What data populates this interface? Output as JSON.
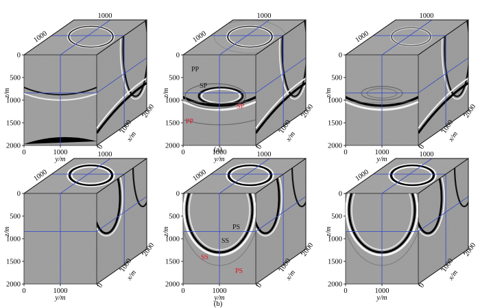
{
  "colors": {
    "background": "#ffffff",
    "slice_gray": "#9c9c9c",
    "crosshair": "#3b4fc4",
    "annotation_black": "#111111",
    "annotation_red": "#e0141e"
  },
  "axis_text": {
    "z_label": "z/m",
    "y_label": "y/m",
    "x_label": "x/m",
    "z_ticks": [
      "0",
      "500",
      "1000",
      "1500",
      "2000"
    ],
    "y_ticks": [
      "0",
      "1000"
    ],
    "x_ticks": [
      "0",
      "1000",
      "2000"
    ],
    "top_tick": "1000",
    "left_top_tick": "1000"
  },
  "captions": {
    "row_a": "(a)",
    "row_b": "(b)"
  },
  "annotations": {
    "a2": [
      {
        "text": "PP",
        "color": "black"
      },
      {
        "text": "SP",
        "color": "black"
      },
      {
        "text": "SP",
        "color": "red"
      },
      {
        "text": "PP",
        "color": "red"
      }
    ],
    "b2": [
      {
        "text": "PS",
        "color": "black"
      },
      {
        "text": "SS",
        "color": "black"
      },
      {
        "text": "SS",
        "color": "red"
      },
      {
        "text": "PS",
        "color": "red"
      }
    ]
  }
}
